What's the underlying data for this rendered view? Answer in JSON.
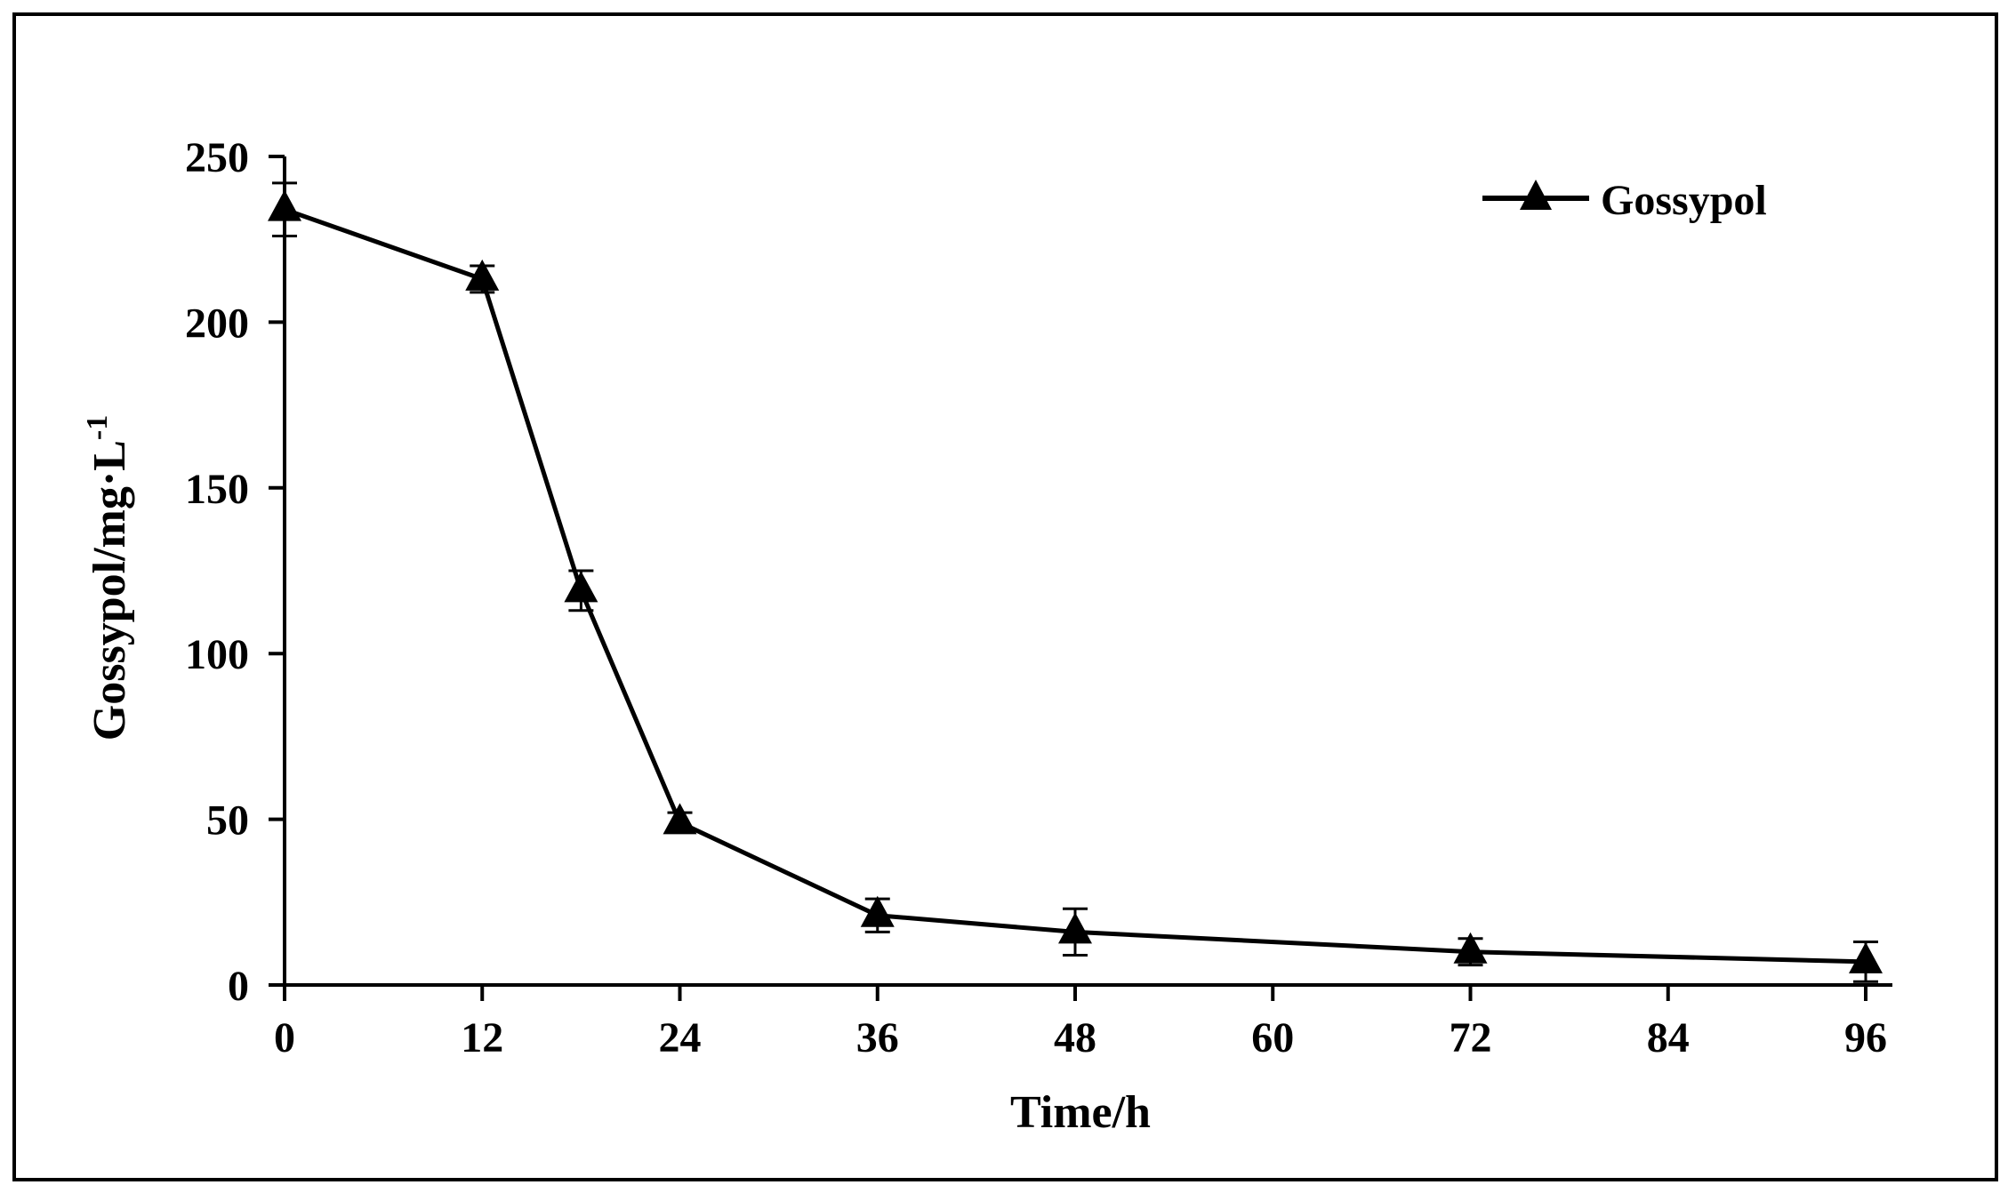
{
  "chart_data": {
    "type": "line",
    "title": "",
    "xlabel": "Time/h",
    "ylabel_main": "Gossypol/mg·L",
    "ylabel_superscript": "-1",
    "x_ticks": [
      0,
      12,
      24,
      36,
      48,
      60,
      72,
      84,
      96
    ],
    "y_ticks": [
      0,
      50,
      100,
      150,
      200,
      250
    ],
    "xlim": [
      0,
      96
    ],
    "ylim": [
      0,
      250
    ],
    "grid": false,
    "legend_position": "top-right",
    "series": [
      {
        "name": "Gossypol",
        "marker": "triangle",
        "color": "#000000",
        "x": [
          0,
          12,
          18,
          24,
          36,
          48,
          72,
          96
        ],
        "y": [
          234,
          213,
          119,
          49,
          21,
          16,
          10,
          7
        ],
        "error": [
          8,
          4,
          6,
          3,
          5,
          7,
          4,
          6
        ]
      }
    ]
  }
}
